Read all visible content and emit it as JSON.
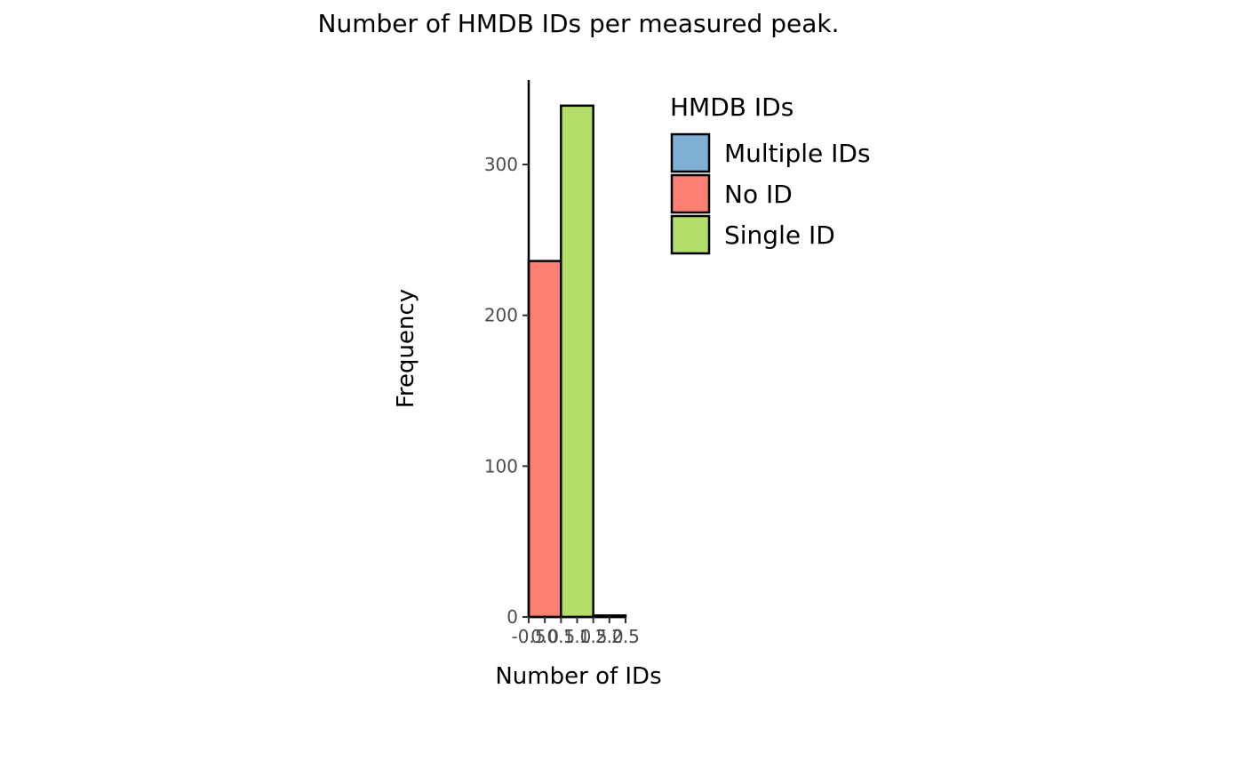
{
  "chart_data": {
    "type": "bar",
    "title": "Number of HMDB IDs per measured peak.",
    "xlabel": "Number of IDs",
    "ylabel": "Frequency",
    "xlim": [
      -0.5,
      2.5
    ],
    "ylim": [
      0,
      356
    ],
    "x_ticks": [
      -0.5,
      0.0,
      0.5,
      1.0,
      1.5,
      2.0,
      2.5
    ],
    "x_tick_labels": [
      "-0.5",
      "0.0",
      "0.5",
      "1.0",
      "1.5",
      "2.0",
      "2.5"
    ],
    "y_ticks": [
      0,
      100,
      200,
      300
    ],
    "y_tick_labels": [
      "0",
      "100",
      "200",
      "300"
    ],
    "bars": [
      {
        "x_start": -0.5,
        "x_end": 0.5,
        "value": 236,
        "group": "No ID"
      },
      {
        "x_start": 0.5,
        "x_end": 1.5,
        "value": 339,
        "group": "Single ID"
      },
      {
        "x_start": 1.5,
        "x_end": 2.5,
        "value": 1,
        "group": "Multiple IDs"
      }
    ],
    "legend": {
      "title": "HMDB IDs",
      "position": "right",
      "items": [
        {
          "label": "Multiple IDs",
          "color": "#7fafd3"
        },
        {
          "label": "No ID",
          "color": "#fb8072"
        },
        {
          "label": "Single ID",
          "color": "#b3de69"
        }
      ]
    },
    "grid": false
  }
}
